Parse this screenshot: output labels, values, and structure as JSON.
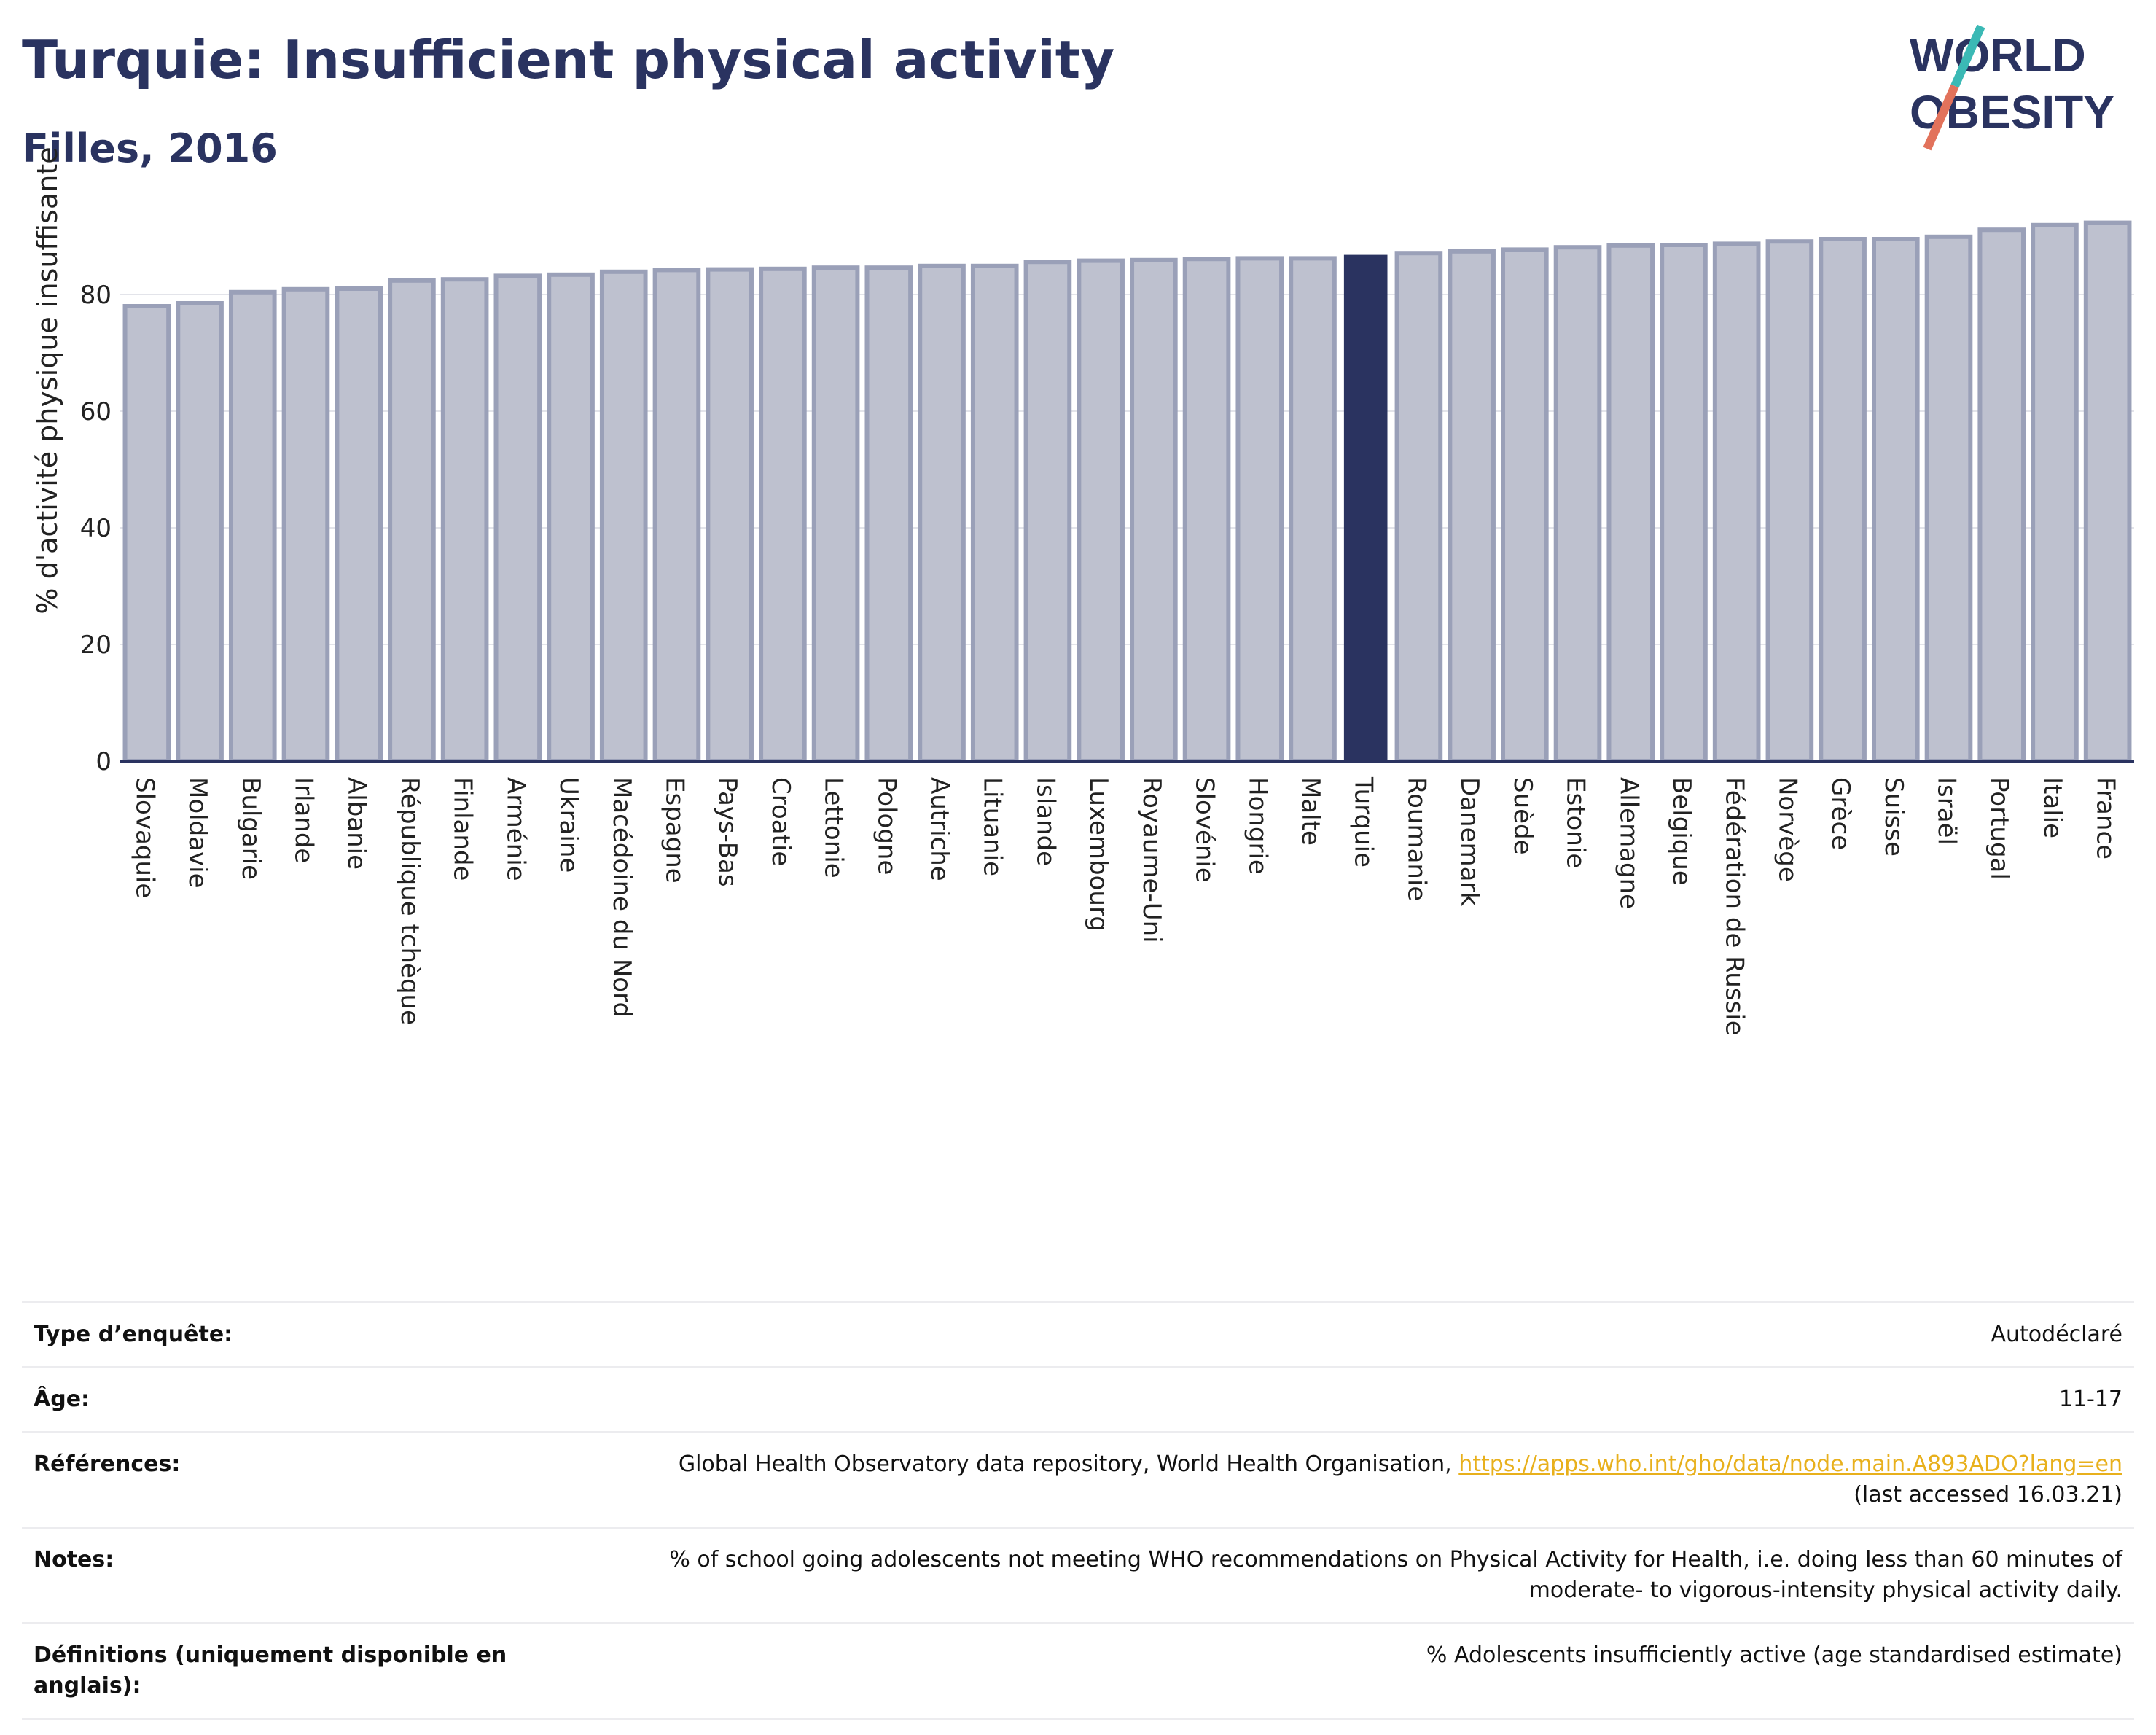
{
  "header": {
    "title": "Turquie: Insufficient physical activity",
    "subtitle": "Filles, 2016"
  },
  "logo": {
    "line1": "WORLD",
    "line2": "OBESITY"
  },
  "colors": {
    "highlight": "#2a3360",
    "bar_fill": "#bec1cf",
    "bar_stroke": "#9aa0b8",
    "accent": "#e8b01c"
  },
  "chart_data": {
    "type": "bar",
    "title": "Turquie: Insufficient physical activity",
    "subtitle": "Filles, 2016",
    "xlabel": "",
    "ylabel": "% d'activité physique insuffisante",
    "ylim": [
      0,
      93
    ],
    "yticks": [
      0,
      20,
      40,
      60,
      80
    ],
    "grid": true,
    "highlight": "Turquie",
    "categories": [
      "Slovaquie",
      "Moldavie",
      "Bulgarie",
      "Irlande",
      "Albanie",
      "République tchèque",
      "Finlande",
      "Arménie",
      "Ukraine",
      "Macédoine du Nord",
      "Espagne",
      "Pays-Bas",
      "Croatie",
      "Lettonie",
      "Pologne",
      "Autriche",
      "Lituanie",
      "Islande",
      "Luxembourg",
      "Royaume-Uni",
      "Slovénie",
      "Hongrie",
      "Malte",
      "Turquie",
      "Roumanie",
      "Danemark",
      "Suède",
      "Estonie",
      "Allemagne",
      "Belgique",
      "Fédération de Russie",
      "Norvège",
      "Grèce",
      "Suisse",
      "Israël",
      "Portugal",
      "Italie",
      "France"
    ],
    "values": [
      78.0,
      78.5,
      80.4,
      80.9,
      81.0,
      82.4,
      82.6,
      83.2,
      83.4,
      83.9,
      84.2,
      84.3,
      84.4,
      84.6,
      84.6,
      84.9,
      84.9,
      85.6,
      85.8,
      85.9,
      86.1,
      86.2,
      86.2,
      86.8,
      87.1,
      87.4,
      87.7,
      88.1,
      88.4,
      88.5,
      88.7,
      89.1,
      89.5,
      89.5,
      89.9,
      91.1,
      91.9,
      92.3
    ]
  },
  "info": {
    "rows": [
      {
        "key": "Type d’enquête:",
        "value": "Autodéclaré"
      },
      {
        "key": "Âge:",
        "value": "11-17"
      },
      {
        "key": "Références:",
        "value": "Global Health Observatory data repository, World Health Organisation,",
        "link": "https://apps.who.int/gho/data/node.main.A893ADO?lang=en",
        "extra": "(last accessed 16.03.21)"
      },
      {
        "key": "Notes:",
        "value": "% of school going adolescents not meeting WHO recommendations on Physical Activity for Health, i.e. doing less than 60 minutes of",
        "extra": "moderate- to vigorous-intensity physical activity daily."
      },
      {
        "key": "Définitions (uniquement disponible en anglais):",
        "value": "% Adolescents insufficiently active (age standardised estimate)"
      }
    ]
  }
}
